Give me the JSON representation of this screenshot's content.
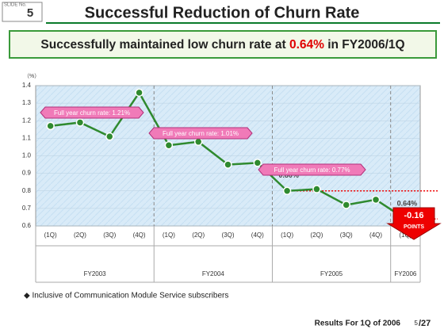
{
  "slide": {
    "slide_label": "SLIDE No.",
    "slide_number": "5",
    "title": "Successful Reduction of Churn Rate",
    "headline": {
      "before": "Successfully maintained low churn rate at ",
      "highlight": "0.64%",
      "after": " in FY2006/1Q"
    },
    "note": "◆ Inclusive of Communication Module Service subscribers",
    "footer": "Results For 1Q of 2006",
    "page": "5",
    "page_total": "/27"
  },
  "chart_data": {
    "type": "line",
    "y_unit": "（%）",
    "groups": [
      {
        "label": "FY2003",
        "quarters": [
          "(1Q)",
          "(2Q)",
          "(3Q)",
          "(4Q)"
        ]
      },
      {
        "label": "FY2004",
        "quarters": [
          "(1Q)",
          "(2Q)",
          "(3Q)",
          "(4Q)"
        ]
      },
      {
        "label": "FY2005",
        "quarters": [
          "(1Q)",
          "(2Q)",
          "(3Q)",
          "(4Q)"
        ]
      },
      {
        "label": "FY2006",
        "quarters": [
          "(1Q)"
        ]
      }
    ],
    "values": [
      1.17,
      1.19,
      1.11,
      1.36,
      1.06,
      1.08,
      0.95,
      0.96,
      0.8,
      0.81,
      0.72,
      0.75,
      0.64
    ],
    "value_labels": [
      null,
      null,
      null,
      null,
      null,
      null,
      null,
      null,
      "0.80%",
      null,
      null,
      null,
      "0.64%"
    ],
    "color": "#2f8a2f",
    "ylim": [
      0.6,
      1.4
    ],
    "yticks": [
      0.6,
      0.7,
      0.8,
      0.9,
      {
        "value": 1,
        "label": "1.0"
      },
      1.1,
      1.2,
      1.3,
      1.4
    ],
    "grid": true,
    "annotations": [
      "Full year churn rate: 1.21%",
      "Full year churn rate: 1.01%",
      "Full year churn rate: 0.77%"
    ],
    "change_label": "-0.16",
    "change_unit": "POINTS"
  }
}
